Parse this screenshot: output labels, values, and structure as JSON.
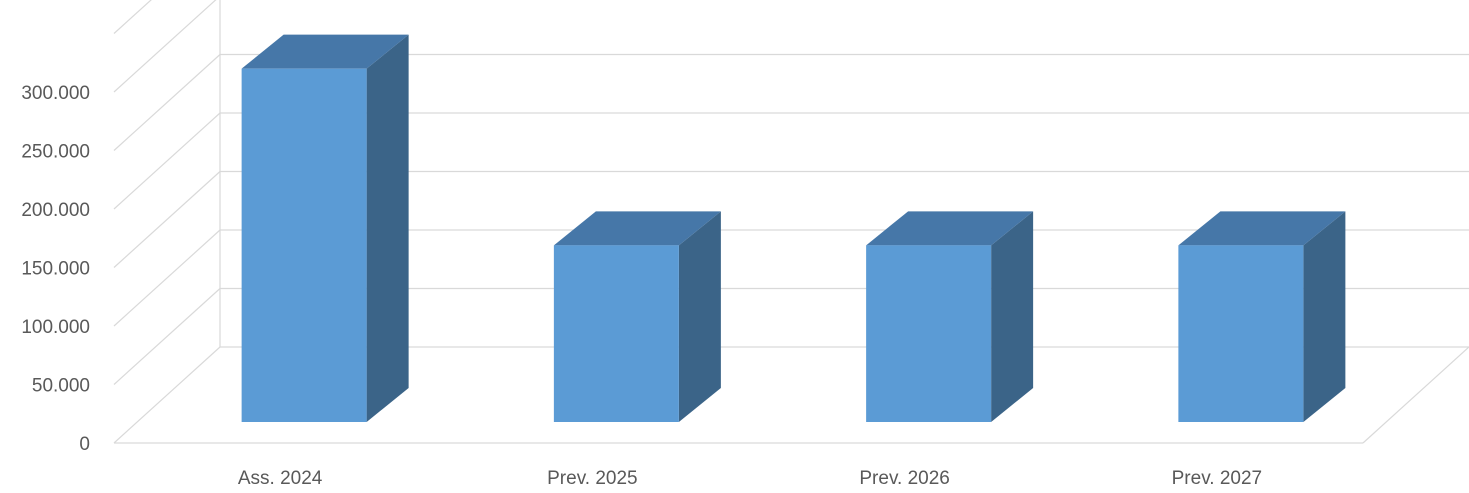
{
  "chart_data": {
    "type": "bar",
    "style": "3d-column",
    "categories": [
      "Ass. 2024",
      "Prev. 2025",
      "Prev. 2026",
      "Prev. 2027"
    ],
    "series": [
      {
        "values": [
          302000,
          151000,
          151000,
          151000
        ]
      }
    ],
    "ylim": [
      0,
      300000
    ],
    "yticks": [
      0,
      50000,
      100000,
      150000,
      200000,
      250000,
      300000
    ],
    "ytick_labels": [
      "0",
      "50.000",
      "100.000",
      "150.000",
      "200.000",
      "250.000",
      "300.000"
    ],
    "grid": true,
    "legend": "none",
    "colors": {
      "front": "#5B9BD5",
      "top": "#4677A8",
      "side": "#3B6488",
      "grid": "#D9D9D9",
      "text": "#595959"
    }
  }
}
